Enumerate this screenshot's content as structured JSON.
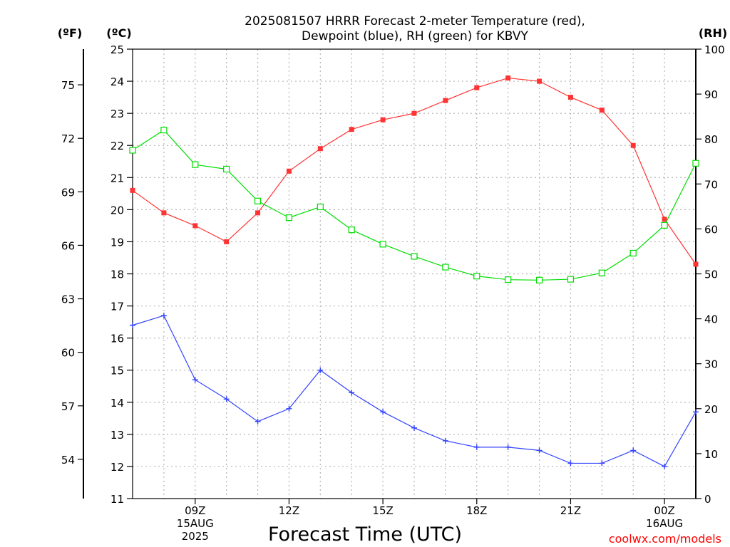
{
  "chart_data": {
    "type": "line",
    "title_lines": [
      "2025081507 HRRR Forecast 2-meter Temperature (red),",
      "Dewpoint (blue), RH (green) for KBVY"
    ],
    "xlabel": "Forecast Time (UTC)",
    "credit": "coolwx.com/models",
    "units": {
      "fahrenheit": "(ºF)",
      "celsius": "(ºC)",
      "rh": "(RH)"
    },
    "x_hours": [
      7,
      8,
      9,
      10,
      11,
      12,
      13,
      14,
      15,
      16,
      17,
      18,
      19,
      20,
      21,
      22,
      23,
      24,
      25
    ],
    "xlim": [
      7,
      25
    ],
    "x_ticks": [
      {
        "hour": 9,
        "lines": [
          "09Z",
          "15AUG",
          "2025"
        ]
      },
      {
        "hour": 12,
        "lines": [
          "12Z"
        ]
      },
      {
        "hour": 15,
        "lines": [
          "15Z"
        ]
      },
      {
        "hour": 18,
        "lines": [
          "18Z"
        ]
      },
      {
        "hour": 21,
        "lines": [
          "21Z"
        ]
      },
      {
        "hour": 24,
        "lines": [
          "00Z",
          "16AUG"
        ]
      }
    ],
    "celsius_axis": {
      "min": 11,
      "max": 25,
      "ticks": [
        11,
        12,
        13,
        14,
        15,
        16,
        17,
        18,
        19,
        20,
        21,
        22,
        23,
        24,
        25
      ]
    },
    "fahrenheit_axis": {
      "ticks": [
        54,
        57,
        60,
        63,
        66,
        69,
        72,
        75
      ]
    },
    "rh_axis": {
      "min": 0,
      "max": 100,
      "ticks": [
        0,
        10,
        20,
        30,
        40,
        50,
        60,
        70,
        80,
        90,
        100
      ]
    },
    "grid": true,
    "series": [
      {
        "name": "Temperature",
        "color": "#ff3333",
        "axis": "celsius",
        "marker": "filled-square",
        "values": [
          20.6,
          19.9,
          19.5,
          19.0,
          19.9,
          21.2,
          21.9,
          22.5,
          22.8,
          23.0,
          23.4,
          23.8,
          24.1,
          24.0,
          23.5,
          23.1,
          22.0,
          19.7,
          18.3
        ]
      },
      {
        "name": "Dewpoint",
        "color": "#3344ff",
        "axis": "celsius",
        "marker": "plus",
        "values": [
          16.4,
          16.7,
          14.7,
          14.1,
          13.4,
          13.8,
          15.0,
          14.3,
          13.7,
          13.2,
          12.8,
          12.6,
          12.6,
          12.5,
          12.1,
          12.1,
          12.5,
          12.0,
          13.7
        ]
      },
      {
        "name": "RH",
        "color": "#00dd00",
        "axis": "rh",
        "marker": "open-square",
        "values": [
          77.5,
          82,
          74.3,
          73.3,
          66.2,
          62.5,
          64.9,
          59.8,
          56.6,
          53.9,
          51.5,
          49.5,
          48.7,
          48.6,
          48.8,
          50.2,
          54.6,
          60.8,
          74.6
        ]
      }
    ]
  }
}
